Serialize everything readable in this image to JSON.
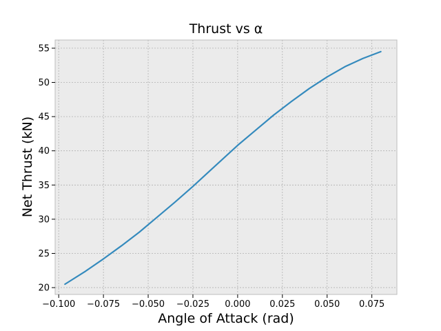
{
  "chart_data": {
    "type": "line",
    "title": "Thrust vs α",
    "xlabel": "Angle of Attack (rad)",
    "ylabel": "Net Thrust (kN)",
    "xlim": [
      -0.102,
      0.089
    ],
    "ylim": [
      19.0,
      56.2
    ],
    "xticks": [
      -0.1,
      -0.075,
      -0.05,
      -0.025,
      0.0,
      0.025,
      0.05,
      0.075
    ],
    "xtick_labels": [
      "−0.100",
      "−0.075",
      "−0.050",
      "−0.025",
      "0.000",
      "0.025",
      "0.050",
      "0.075"
    ],
    "yticks": [
      20,
      25,
      30,
      35,
      40,
      45,
      50,
      55
    ],
    "ytick_labels": [
      "20",
      "25",
      "30",
      "35",
      "40",
      "45",
      "50",
      "55"
    ],
    "grid": true,
    "background_color": "#ebebeb",
    "grid_color": "#b0b0b0",
    "series": [
      {
        "color": "#348abd",
        "x": [
          -0.0965,
          -0.085,
          -0.075,
          -0.065,
          -0.055,
          -0.045,
          -0.035,
          -0.025,
          -0.015,
          -0.005,
          0.0,
          0.01,
          0.02,
          0.03,
          0.04,
          0.05,
          0.06,
          0.07,
          0.08
        ],
        "y": [
          20.5,
          22.4,
          24.2,
          26.1,
          28.1,
          30.3,
          32.5,
          34.8,
          37.2,
          39.6,
          40.8,
          43.0,
          45.2,
          47.2,
          49.1,
          50.8,
          52.3,
          53.5,
          54.5
        ]
      }
    ]
  }
}
